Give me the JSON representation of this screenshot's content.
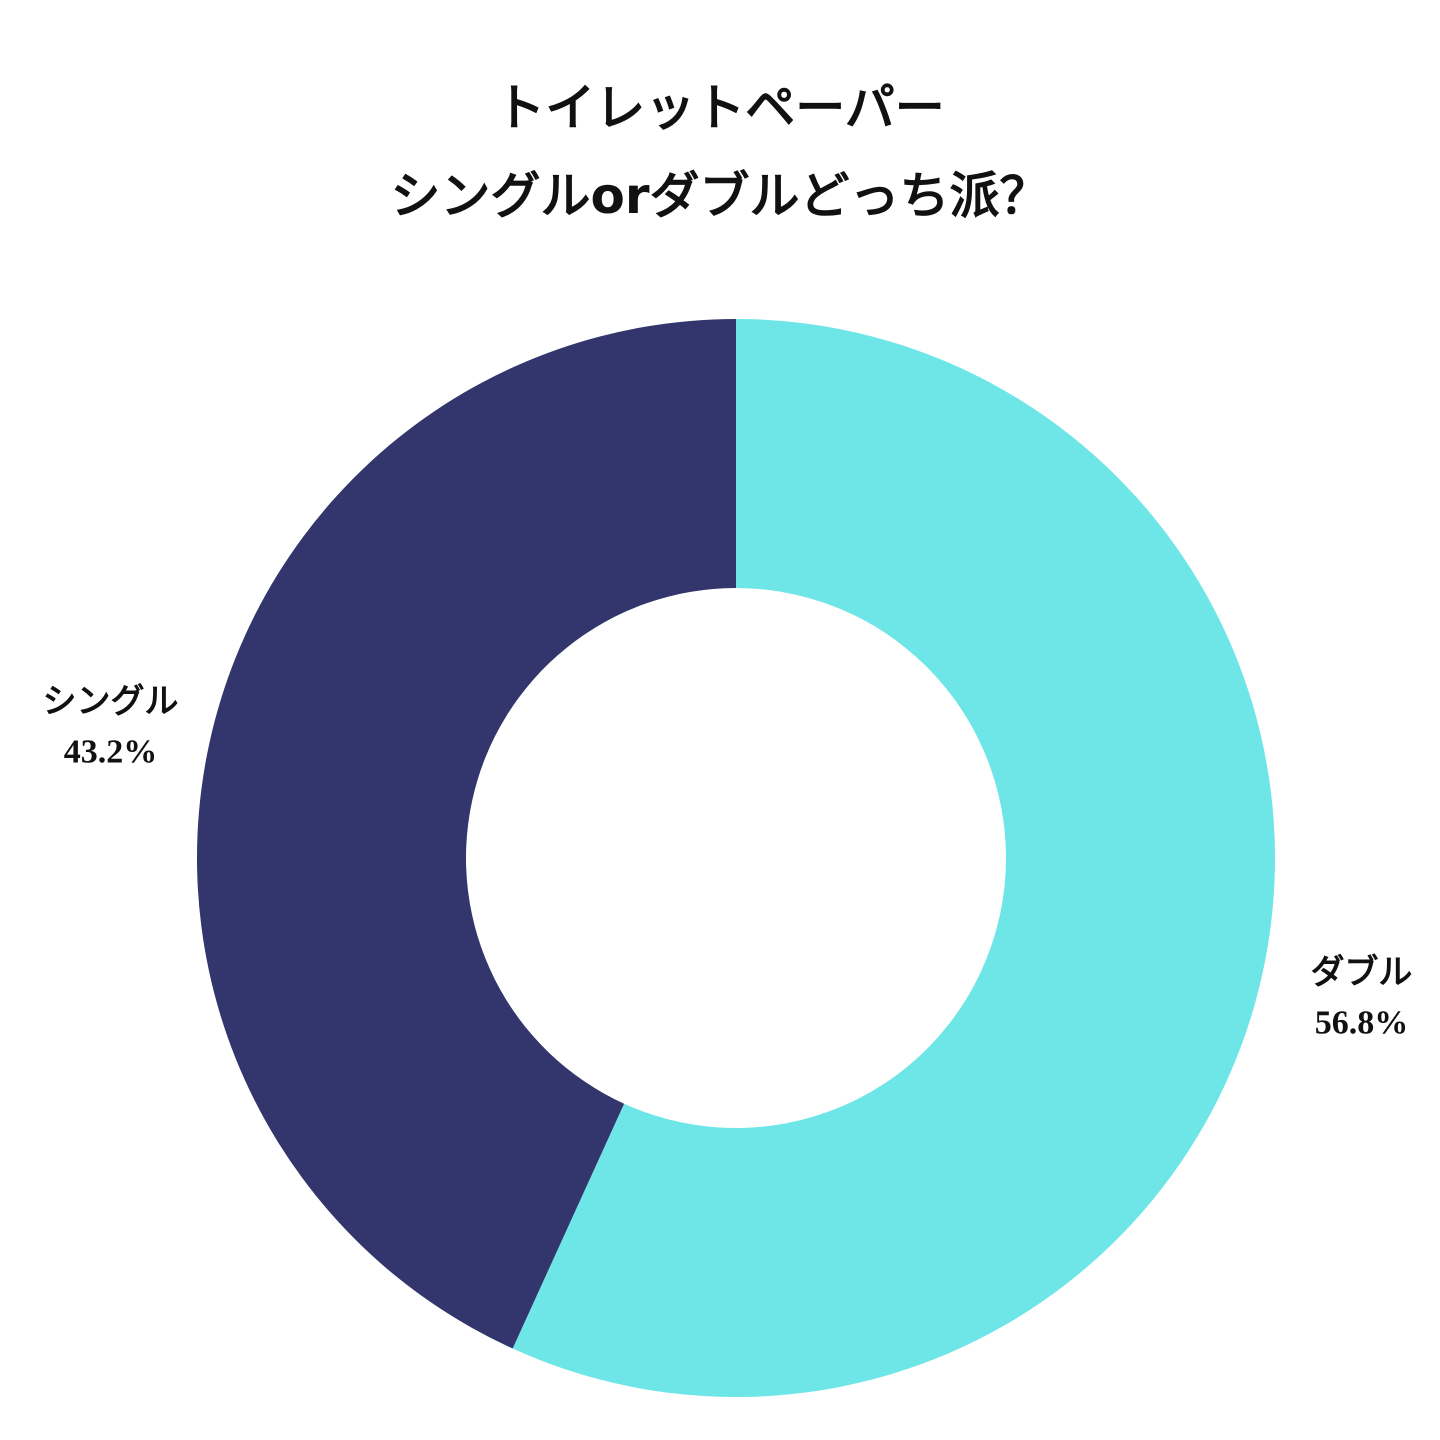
{
  "chart_data": {
    "type": "donut",
    "title": "トイレットペーパー\nシングルorダブルどっち派？",
    "categories": [
      "ダブル",
      "シングル"
    ],
    "values": [
      56.8,
      43.2
    ],
    "value_labels": [
      "56.8%",
      "43.2%"
    ],
    "colors": [
      "#6ee6e8",
      "#32366c"
    ]
  }
}
